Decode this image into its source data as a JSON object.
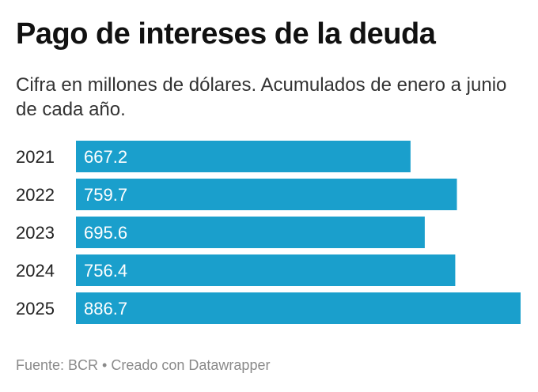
{
  "header": {
    "title": "Pago de intereses de la deuda",
    "subtitle": "Cifra en millones de dólares. Acumulados de enero a junio de cada año."
  },
  "footer": {
    "source": "Fuente: BCR • Creado con Datawrapper"
  },
  "colors": {
    "bar": "#1a9fcc",
    "bar_label": "#ffffff",
    "category_label": "#222222"
  },
  "chart_data": {
    "type": "bar",
    "orientation": "horizontal",
    "title": "Pago de intereses de la deuda",
    "subtitle": "Cifra en millones de dólares. Acumulados de enero a junio de cada año.",
    "categories": [
      "2021",
      "2022",
      "2023",
      "2024",
      "2025"
    ],
    "values": [
      667.2,
      759.7,
      695.6,
      756.4,
      886.7
    ],
    "value_labels": [
      "667.2",
      "759.7",
      "695.6",
      "756.4",
      "886.7"
    ],
    "xlim": [
      0,
      886.7
    ],
    "grid": false,
    "legend": "none"
  }
}
